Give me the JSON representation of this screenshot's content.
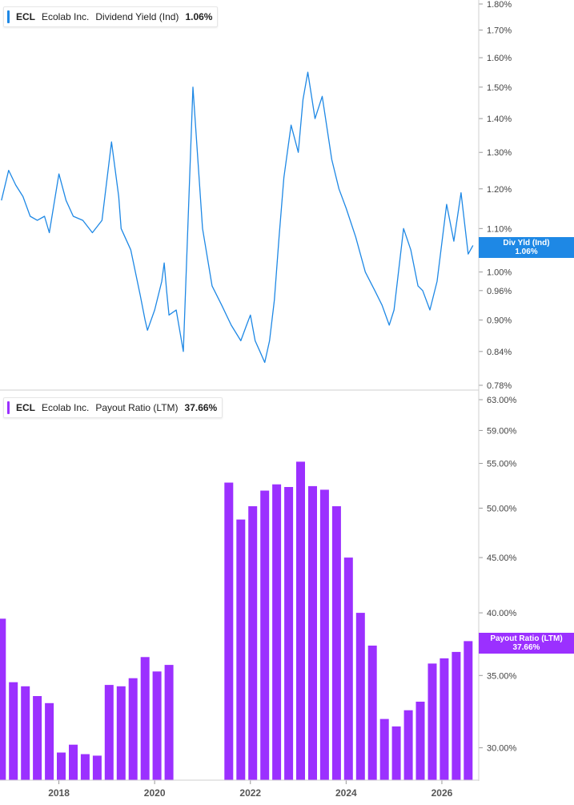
{
  "colors": {
    "yield": "#1e88e5",
    "payout": "#9b30ff"
  },
  "top_legend": {
    "ticker": "ECL",
    "company": "Ecolab Inc.",
    "metric": "Dividend Yield (Ind)",
    "value": "1.06%"
  },
  "bottom_legend": {
    "ticker": "ECL",
    "company": "Ecolab Inc.",
    "metric": "Payout Ratio (LTM)",
    "value": "37.66%"
  },
  "top_flag": {
    "label": "Div Yld (Ind)",
    "value": "1.06%"
  },
  "bottom_flag": {
    "label": "Payout Ratio (LTM)",
    "value": "37.66%"
  },
  "chart_data": [
    {
      "type": "line",
      "series": [
        {
          "name": "Dividend Yield (Ind)"
        }
      ],
      "y_scale": "log",
      "ylim": [
        0.78,
        1.8
      ],
      "y_ticks": [
        "1.80%",
        "1.70%",
        "1.60%",
        "1.50%",
        "1.40%",
        "1.30%",
        "1.20%",
        "1.10%",
        "1.00%",
        "0.96%",
        "0.90%",
        "0.84%",
        "0.78%"
      ],
      "x_ticks": [
        "2018",
        "2020",
        "2022",
        "2024",
        "2026"
      ],
      "x": [
        2016.8,
        2016.95,
        2017.1,
        2017.25,
        2017.4,
        2017.55,
        2017.7,
        2017.8,
        2018.0,
        2018.15,
        2018.3,
        2018.5,
        2018.7,
        2018.9,
        2019.1,
        2019.25,
        2019.3,
        2019.5,
        2019.7,
        2019.8,
        2019.85,
        2020.0,
        2020.15,
        2020.2,
        2020.25,
        2020.3,
        2020.45,
        2020.6,
        2020.8,
        2021.0,
        2021.2,
        2021.4,
        2021.6,
        2021.8,
        2021.92,
        2022.0,
        2022.1,
        2022.2,
        2022.3,
        2022.4,
        2022.5,
        2022.6,
        2022.7,
        2022.85,
        2023.0,
        2023.1,
        2023.2,
        2023.35,
        2023.5,
        2023.7,
        2023.85,
        2024.0,
        2024.2,
        2024.4,
        2024.6,
        2024.75,
        2024.9,
        2025.0,
        2025.2,
        2025.35,
        2025.5,
        2025.6,
        2025.75,
        2025.9,
        2026.1,
        2026.25,
        2026.4,
        2026.55,
        2026.65
      ],
      "values": [
        1.17,
        1.25,
        1.21,
        1.18,
        1.13,
        1.12,
        1.13,
        1.09,
        1.24,
        1.17,
        1.13,
        1.12,
        1.09,
        1.12,
        1.33,
        1.18,
        1.1,
        1.05,
        0.95,
        0.9,
        0.88,
        0.92,
        0.98,
        1.02,
        0.96,
        0.91,
        0.92,
        0.84,
        1.5,
        1.1,
        0.97,
        0.93,
        0.89,
        0.86,
        0.89,
        0.91,
        0.86,
        0.84,
        0.82,
        0.86,
        0.94,
        1.08,
        1.23,
        1.38,
        1.3,
        1.46,
        1.55,
        1.4,
        1.47,
        1.28,
        1.2,
        1.15,
        1.08,
        1.0,
        0.96,
        0.93,
        0.89,
        0.92,
        1.1,
        1.05,
        0.97,
        0.96,
        0.92,
        0.98,
        1.16,
        1.07,
        1.19,
        1.04,
        1.06
      ]
    },
    {
      "type": "bar",
      "series": [
        {
          "name": "Payout Ratio (LTM)"
        }
      ],
      "y_scale": "log",
      "ylim": [
        28.0,
        63.0
      ],
      "y_ticks": [
        "63.00%",
        "59.00%",
        "55.00%",
        "50.00%",
        "45.00%",
        "40.00%",
        "35.00%",
        "30.00%"
      ],
      "x_ticks": [
        "2018",
        "2020",
        "2022",
        "2024",
        "2026"
      ],
      "x": [
        2016.8,
        2017.05,
        2017.3,
        2017.55,
        2017.8,
        2018.05,
        2018.3,
        2018.55,
        2018.8,
        2019.05,
        2019.3,
        2019.55,
        2019.8,
        2020.05,
        2020.3,
        2021.55,
        2021.8,
        2022.05,
        2022.3,
        2022.55,
        2022.8,
        2023.05,
        2023.3,
        2023.55,
        2023.8,
        2024.05,
        2024.3,
        2024.55,
        2024.8,
        2025.05,
        2025.3,
        2025.55,
        2025.8,
        2026.05,
        2026.3,
        2026.55
      ],
      "values": [
        39.5,
        34.5,
        34.2,
        33.5,
        33.0,
        29.7,
        30.2,
        29.6,
        29.5,
        34.3,
        34.2,
        34.8,
        36.4,
        35.3,
        35.8,
        52.8,
        48.8,
        50.2,
        51.9,
        52.6,
        52.3,
        55.2,
        52.4,
        52.0,
        50.2,
        45.0,
        40.0,
        37.3,
        31.9,
        31.4,
        32.5,
        33.1,
        35.9,
        36.3,
        36.8,
        37.66
      ]
    }
  ]
}
